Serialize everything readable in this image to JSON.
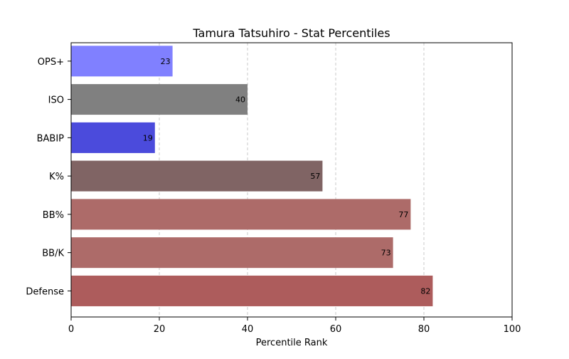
{
  "chart_data": {
    "type": "bar",
    "orientation": "horizontal",
    "title": "Tamura Tatsuhiro - Stat Percentiles",
    "xlabel": "Percentile Rank",
    "ylabel": "",
    "xlim": [
      0,
      100
    ],
    "xticks": [
      "0",
      "20",
      "40",
      "60",
      "80",
      "100"
    ],
    "grid": "x-dashed",
    "categories": [
      "OPS+",
      "ISO",
      "BABIP",
      "K%",
      "BB%",
      "BB/K",
      "Defense"
    ],
    "values": [
      23,
      40,
      19,
      57,
      77,
      73,
      82
    ],
    "colors": [
      "#8080ff",
      "#808080",
      "#4b4bdc",
      "#806464",
      "#ad6b69",
      "#ad6b69",
      "#ad5c5c"
    ]
  }
}
